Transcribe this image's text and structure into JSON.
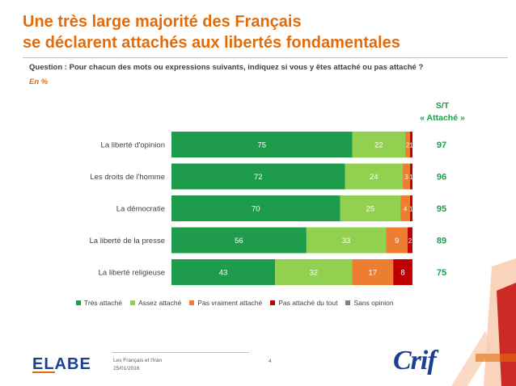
{
  "header": {
    "title_line1": "Une très large majorité des Français",
    "title_line2": "se déclarent attachés aux libertés fondamentales",
    "question": "Question : Pour chacun des mots ou expressions suivants, indiquez si vous y êtes attaché ou pas attaché ?",
    "unit": "En %"
  },
  "st_header": {
    "line1": "S/T",
    "line2": "« Attaché »"
  },
  "footer": {
    "brand_left": "ELABE",
    "study": "Les Français et l'Iran",
    "date": "25/01/2016",
    "page": "4",
    "brand_right": "Crif"
  },
  "colors": {
    "title": "#e36c0a",
    "tres_attache": "#1e9b4b",
    "assez_attache": "#92d050",
    "pas_vraiment": "#ed7d31",
    "pas_du_tout": "#c00000",
    "sans_opinion": "#7f7f7f"
  },
  "chart_data": {
    "type": "bar",
    "orientation": "horizontal",
    "stacked": true,
    "categories": [
      "La liberté d'opinion",
      "Les droits de l'homme",
      "La démocratie",
      "La liberté de la presse",
      "La liberté religieuse"
    ],
    "series": [
      {
        "name": "Très attaché",
        "color": "#1e9b4b",
        "values": [
          75,
          72,
          70,
          56,
          43
        ]
      },
      {
        "name": "Assez attaché",
        "color": "#92d050",
        "values": [
          22,
          24,
          25,
          33,
          32
        ]
      },
      {
        "name": "Pas vraiment attaché",
        "color": "#ed7d31",
        "values": [
          2,
          3,
          4,
          9,
          17
        ]
      },
      {
        "name": "Pas attaché du tout",
        "color": "#c00000",
        "values": [
          1,
          1,
          1,
          2,
          8
        ]
      },
      {
        "name": "Sans opinion",
        "color": "#7f7f7f",
        "values": [
          0,
          0,
          0,
          0,
          0
        ]
      }
    ],
    "st_attache": [
      97,
      96,
      95,
      89,
      75
    ],
    "xlim": [
      0,
      100
    ],
    "legend_position": "bottom"
  }
}
